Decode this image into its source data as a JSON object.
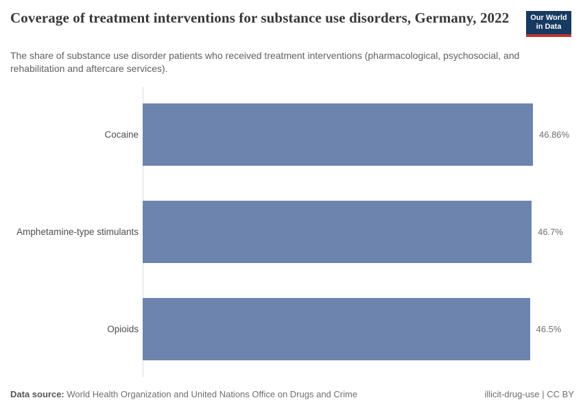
{
  "header": {
    "title": "Coverage of treatment interventions for substance use disorders, Germany, 2022",
    "subtitle": "The share of substance use disorder patients who received treatment interventions (pharmacological, psychosocial, and rehabilitation and aftercare services).",
    "logo": {
      "line1": "Our World",
      "line2": "in Data"
    }
  },
  "chart_data": {
    "type": "bar",
    "orientation": "horizontal",
    "title": "Coverage of treatment interventions for substance use disorders, Germany, 2022",
    "categories": [
      "Cocaine",
      "Amphetamine-type stimulants",
      "Opioids"
    ],
    "values": [
      46.86,
      46.7,
      46.5
    ],
    "value_labels": [
      "46.86%",
      "46.7%",
      "46.5%"
    ],
    "unit": "%",
    "xlim": [
      0,
      46.86
    ],
    "xlabel": "",
    "ylabel": "",
    "grid": false,
    "legend": false,
    "bar_color": "#6d84ae"
  },
  "footer": {
    "source_label": "Data source:",
    "source_text": "World Health Organization and United Nations Office on Drugs and Crime",
    "license_text": "illicit-drug-use | CC BY"
  },
  "colors": {
    "bar": "#6d84ae",
    "logo_bg": "#173a63",
    "logo_accent": "#c0362c",
    "axis_line": "#dcdcdc",
    "title_text": "#383838",
    "subtitle_text": "#5f5f5f",
    "label_text": "#4d4d4d",
    "value_text": "#6e6e6e",
    "footer_text": "#6e6e6e"
  }
}
